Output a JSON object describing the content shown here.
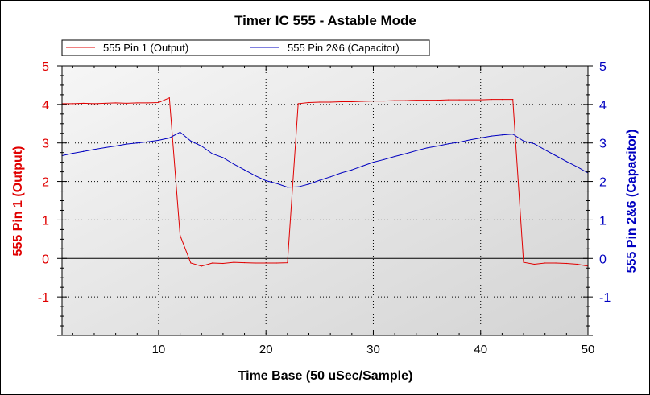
{
  "chart_data": {
    "type": "line",
    "title": "Timer IC 555 - Astable Mode",
    "xlabel": "Time Base (50 uSec/Sample)",
    "ylabel_left": "555 Pin 1 (Output)",
    "ylabel_right": "555 Pin 2&6 (Capacitor)",
    "xlim": [
      1,
      50
    ],
    "ylim": [
      -2,
      5
    ],
    "x_ticks": [
      "10",
      "20",
      "30",
      "40",
      "50"
    ],
    "y_ticks": [
      "5",
      "4",
      "3",
      "2",
      "1",
      "0",
      "-1"
    ],
    "grid": true,
    "legend_position": "top",
    "series": [
      {
        "name": "555 Pin 1 (Output)",
        "color": "#e00000",
        "axis": "left",
        "values": [
          4.02,
          4.02,
          4.03,
          4.02,
          4.03,
          4.04,
          4.03,
          4.04,
          4.04,
          4.05,
          4.17,
          0.6,
          -0.12,
          -0.2,
          -0.12,
          -0.13,
          -0.1,
          -0.11,
          -0.12,
          -0.12,
          -0.12,
          -0.11,
          4.02,
          4.05,
          4.06,
          4.06,
          4.07,
          4.07,
          4.08,
          4.09,
          4.09,
          4.1,
          4.1,
          4.11,
          4.11,
          4.11,
          4.12,
          4.12,
          4.12,
          4.12,
          4.13,
          4.13,
          4.13,
          -0.1,
          -0.15,
          -0.12,
          -0.12,
          -0.13,
          -0.15,
          -0.2
        ]
      },
      {
        "name": "555 Pin 2&6 (Capacitor)",
        "color": "#0000c0",
        "axis": "right",
        "values": [
          2.67,
          2.73,
          2.78,
          2.83,
          2.88,
          2.92,
          2.97,
          3.0,
          3.03,
          3.07,
          3.13,
          3.28,
          3.05,
          2.92,
          2.72,
          2.62,
          2.45,
          2.3,
          2.15,
          2.02,
          1.95,
          1.85,
          1.86,
          1.93,
          2.03,
          2.12,
          2.22,
          2.3,
          2.4,
          2.5,
          2.57,
          2.65,
          2.72,
          2.8,
          2.87,
          2.92,
          2.98,
          3.02,
          3.08,
          3.13,
          3.18,
          3.21,
          3.23,
          3.05,
          2.98,
          2.82,
          2.67,
          2.52,
          2.38,
          2.22
        ]
      }
    ]
  }
}
